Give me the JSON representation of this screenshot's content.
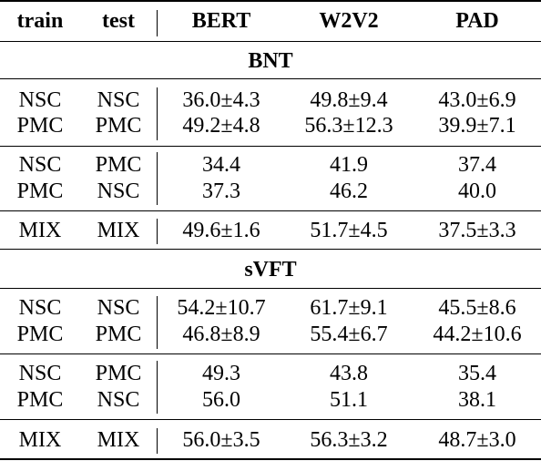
{
  "header": {
    "train": "train",
    "test": "test",
    "bert": "BERT",
    "w2v2": "W2V2",
    "pad": "PAD"
  },
  "sections": [
    {
      "title": "BNT",
      "groups": [
        [
          {
            "train": "NSC",
            "test": "NSC",
            "bert": "36.0±4.3",
            "w2v2": "49.8±9.4",
            "pad": "43.0±6.9"
          },
          {
            "train": "PMC",
            "test": "PMC",
            "bert": "49.2±4.8",
            "w2v2": "56.3±12.3",
            "pad": "39.9±7.1"
          }
        ],
        [
          {
            "train": "NSC",
            "test": "PMC",
            "bert": "34.4",
            "w2v2": "41.9",
            "pad": "37.4"
          },
          {
            "train": "PMC",
            "test": "NSC",
            "bert": "37.3",
            "w2v2": "46.2",
            "pad": "40.0"
          }
        ],
        [
          {
            "train": "MIX",
            "test": "MIX",
            "bert": "49.6±1.6",
            "w2v2": "51.7±4.5",
            "pad": "37.5±3.3"
          }
        ]
      ]
    },
    {
      "title": "sVFT",
      "groups": [
        [
          {
            "train": "NSC",
            "test": "NSC",
            "bert": "54.2±10.7",
            "w2v2": "61.7±9.1",
            "pad": "45.5±8.6"
          },
          {
            "train": "PMC",
            "test": "PMC",
            "bert": "46.8±8.9",
            "w2v2": "55.4±6.7",
            "pad": "44.2±10.6"
          }
        ],
        [
          {
            "train": "NSC",
            "test": "PMC",
            "bert": "49.3",
            "w2v2": "43.8",
            "pad": "35.4"
          },
          {
            "train": "PMC",
            "test": "NSC",
            "bert": "56.0",
            "w2v2": "51.1",
            "pad": "38.1"
          }
        ],
        [
          {
            "train": "MIX",
            "test": "MIX",
            "bert": "56.0±3.5",
            "w2v2": "56.3±3.2",
            "pad": "48.7±3.0"
          }
        ]
      ]
    }
  ]
}
